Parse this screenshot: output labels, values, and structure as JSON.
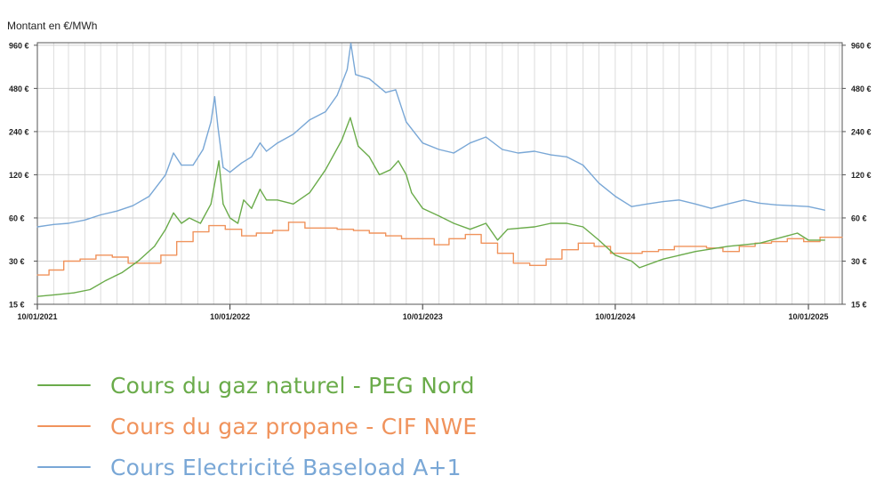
{
  "chart_data": {
    "type": "line",
    "title": "",
    "ylabel": "Montant en €/MWh",
    "xlabel": "",
    "y_scale": "log",
    "ylim": [
      15,
      1000
    ],
    "y_ticks": [
      15,
      30,
      60,
      120,
      240,
      480,
      960
    ],
    "y_tick_labels": [
      "15 €",
      "30 €",
      "60 €",
      "120 €",
      "240 €",
      "480 €",
      "960 €"
    ],
    "y_ticks_both_sides": true,
    "xlim": [
      "2021-01-10",
      "2025-03-15"
    ],
    "x_tick_labels": [
      "10/01/2021",
      "10/01/2022",
      "10/01/2023",
      "10/01/2024",
      "10/01/2025"
    ],
    "x_ticks": [
      "2021-01-10",
      "2022-01-10",
      "2023-01-10",
      "2024-01-10",
      "2025-01-10"
    ],
    "grid": true,
    "legend_position": "bottom-left",
    "series": [
      {
        "name": "Cours du gaz naturel - PEG Nord",
        "color": "#6aab4a",
        "points": [
          [
            "2021-01-10",
            17
          ],
          [
            "2021-02-15",
            17.5
          ],
          [
            "2021-03-20",
            18
          ],
          [
            "2021-04-20",
            19
          ],
          [
            "2021-05-20",
            22
          ],
          [
            "2021-06-20",
            25
          ],
          [
            "2021-07-20",
            30
          ],
          [
            "2021-08-20",
            38
          ],
          [
            "2021-09-10",
            50
          ],
          [
            "2021-09-25",
            65
          ],
          [
            "2021-10-10",
            55
          ],
          [
            "2021-10-25",
            60
          ],
          [
            "2021-11-15",
            55
          ],
          [
            "2021-12-05",
            75
          ],
          [
            "2021-12-20",
            150
          ],
          [
            "2021-12-28",
            75
          ],
          [
            "2022-01-10",
            60
          ],
          [
            "2022-01-25",
            55
          ],
          [
            "2022-02-05",
            80
          ],
          [
            "2022-02-20",
            70
          ],
          [
            "2022-03-08",
            95
          ],
          [
            "2022-03-20",
            80
          ],
          [
            "2022-04-10",
            80
          ],
          [
            "2022-05-10",
            75
          ],
          [
            "2022-06-10",
            90
          ],
          [
            "2022-07-10",
            130
          ],
          [
            "2022-08-10",
            210
          ],
          [
            "2022-08-26",
            300
          ],
          [
            "2022-09-10",
            190
          ],
          [
            "2022-10-01",
            160
          ],
          [
            "2022-10-20",
            120
          ],
          [
            "2022-11-10",
            130
          ],
          [
            "2022-11-25",
            150
          ],
          [
            "2022-12-10",
            120
          ],
          [
            "2022-12-20",
            90
          ],
          [
            "2023-01-10",
            70
          ],
          [
            "2023-02-10",
            62
          ],
          [
            "2023-03-10",
            55
          ],
          [
            "2023-04-10",
            50
          ],
          [
            "2023-05-10",
            55
          ],
          [
            "2023-06-01",
            42
          ],
          [
            "2023-06-20",
            50
          ],
          [
            "2023-08-10",
            52
          ],
          [
            "2023-09-10",
            55
          ],
          [
            "2023-10-10",
            55
          ],
          [
            "2023-11-10",
            52
          ],
          [
            "2023-12-10",
            42
          ],
          [
            "2024-01-10",
            33
          ],
          [
            "2024-02-10",
            30
          ],
          [
            "2024-02-25",
            27
          ],
          [
            "2024-04-10",
            31
          ],
          [
            "2024-06-10",
            35
          ],
          [
            "2024-08-10",
            38
          ],
          [
            "2024-10-10",
            40
          ],
          [
            "2024-12-01",
            45
          ],
          [
            "2024-12-20",
            47
          ],
          [
            "2025-01-10",
            42
          ],
          [
            "2025-02-10",
            42
          ]
        ]
      },
      {
        "name": "Cours du gaz propane - CIF NWE",
        "color": "#f0935c",
        "step": true,
        "points": [
          [
            "2021-01-10",
            24
          ],
          [
            "2021-02-01",
            26
          ],
          [
            "2021-03-01",
            30
          ],
          [
            "2021-04-01",
            31
          ],
          [
            "2021-05-01",
            33
          ],
          [
            "2021-06-01",
            32
          ],
          [
            "2021-07-01",
            29
          ],
          [
            "2021-08-01",
            29
          ],
          [
            "2021-09-01",
            33
          ],
          [
            "2021-10-01",
            41
          ],
          [
            "2021-11-01",
            48
          ],
          [
            "2021-12-01",
            53
          ],
          [
            "2022-01-01",
            50
          ],
          [
            "2022-02-01",
            45
          ],
          [
            "2022-03-01",
            47
          ],
          [
            "2022-04-01",
            49
          ],
          [
            "2022-05-01",
            56
          ],
          [
            "2022-06-01",
            51
          ],
          [
            "2022-07-01",
            51
          ],
          [
            "2022-08-01",
            50
          ],
          [
            "2022-09-01",
            49
          ],
          [
            "2022-10-01",
            47
          ],
          [
            "2022-11-01",
            45
          ],
          [
            "2022-12-01",
            43
          ],
          [
            "2023-01-01",
            43
          ],
          [
            "2023-02-01",
            39
          ],
          [
            "2023-03-01",
            43
          ],
          [
            "2023-04-01",
            46
          ],
          [
            "2023-05-01",
            40
          ],
          [
            "2023-06-01",
            34
          ],
          [
            "2023-07-01",
            29
          ],
          [
            "2023-08-01",
            28
          ],
          [
            "2023-09-01",
            31
          ],
          [
            "2023-10-01",
            36
          ],
          [
            "2023-11-01",
            40
          ],
          [
            "2023-12-01",
            38
          ],
          [
            "2024-01-01",
            34
          ],
          [
            "2024-02-01",
            34
          ],
          [
            "2024-03-01",
            35
          ],
          [
            "2024-04-01",
            36
          ],
          [
            "2024-05-01",
            38
          ],
          [
            "2024-06-01",
            38
          ],
          [
            "2024-07-01",
            37
          ],
          [
            "2024-08-01",
            35
          ],
          [
            "2024-09-01",
            38
          ],
          [
            "2024-10-01",
            40
          ],
          [
            "2024-11-01",
            41
          ],
          [
            "2024-12-01",
            43
          ],
          [
            "2025-01-01",
            41
          ],
          [
            "2025-02-01",
            44
          ],
          [
            "2025-03-15",
            44
          ]
        ]
      },
      {
        "name": "Cours Electricité Baseload A+1",
        "color": "#79a7d6",
        "points": [
          [
            "2021-01-10",
            52
          ],
          [
            "2021-02-10",
            54
          ],
          [
            "2021-03-10",
            55
          ],
          [
            "2021-04-10",
            58
          ],
          [
            "2021-05-10",
            63
          ],
          [
            "2021-06-10",
            67
          ],
          [
            "2021-07-10",
            73
          ],
          [
            "2021-08-10",
            85
          ],
          [
            "2021-09-10",
            120
          ],
          [
            "2021-09-25",
            170
          ],
          [
            "2021-10-10",
            140
          ],
          [
            "2021-11-01",
            140
          ],
          [
            "2021-11-20",
            180
          ],
          [
            "2021-12-05",
            280
          ],
          [
            "2021-12-12",
            420
          ],
          [
            "2021-12-18",
            260
          ],
          [
            "2021-12-28",
            135
          ],
          [
            "2022-01-10",
            125
          ],
          [
            "2022-02-01",
            145
          ],
          [
            "2022-02-20",
            160
          ],
          [
            "2022-03-08",
            200
          ],
          [
            "2022-03-20",
            175
          ],
          [
            "2022-04-10",
            200
          ],
          [
            "2022-05-10",
            230
          ],
          [
            "2022-06-10",
            290
          ],
          [
            "2022-07-10",
            330
          ],
          [
            "2022-08-01",
            430
          ],
          [
            "2022-08-20",
            650
          ],
          [
            "2022-08-27",
            990
          ],
          [
            "2022-09-05",
            600
          ],
          [
            "2022-10-01",
            560
          ],
          [
            "2022-11-01",
            450
          ],
          [
            "2022-11-20",
            470
          ],
          [
            "2022-12-10",
            280
          ],
          [
            "2023-01-10",
            200
          ],
          [
            "2023-02-10",
            180
          ],
          [
            "2023-03-10",
            170
          ],
          [
            "2023-04-10",
            200
          ],
          [
            "2023-05-10",
            220
          ],
          [
            "2023-06-10",
            180
          ],
          [
            "2023-07-10",
            170
          ],
          [
            "2023-08-10",
            175
          ],
          [
            "2023-09-10",
            165
          ],
          [
            "2023-10-10",
            160
          ],
          [
            "2023-11-10",
            140
          ],
          [
            "2023-12-10",
            105
          ],
          [
            "2024-01-10",
            85
          ],
          [
            "2024-02-10",
            72
          ],
          [
            "2024-03-10",
            75
          ],
          [
            "2024-04-10",
            78
          ],
          [
            "2024-05-10",
            80
          ],
          [
            "2024-06-10",
            75
          ],
          [
            "2024-07-10",
            70
          ],
          [
            "2024-08-10",
            75
          ],
          [
            "2024-09-10",
            80
          ],
          [
            "2024-10-10",
            76
          ],
          [
            "2024-11-10",
            74
          ],
          [
            "2024-12-10",
            73
          ],
          [
            "2025-01-10",
            72
          ],
          [
            "2025-02-10",
            68
          ]
        ]
      }
    ]
  }
}
